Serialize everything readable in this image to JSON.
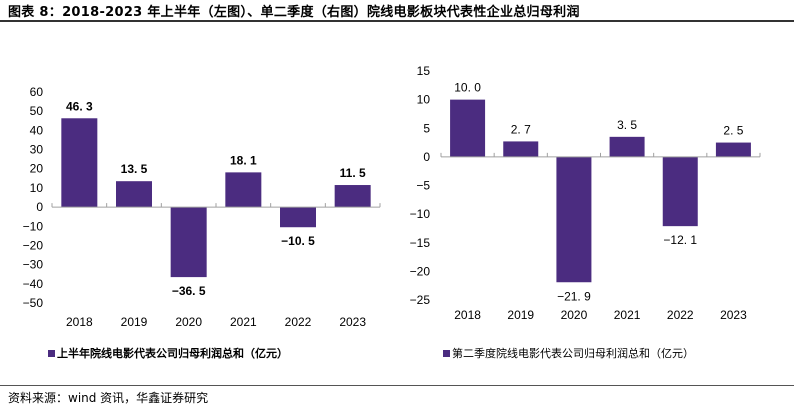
{
  "header": {
    "title": "图表 8：2018-2023 年上半年（左图）、单二季度（右图）院线电影板块代表性企业总归母利润"
  },
  "footer": {
    "source": "资料来源：wind 资讯，华鑫证券研究"
  },
  "colors": {
    "bar": "#4b2c80",
    "axis": "#a0a0a0"
  },
  "chart_data": [
    {
      "type": "bar",
      "title": "",
      "categories": [
        "2018",
        "2019",
        "2020",
        "2021",
        "2022",
        "2023"
      ],
      "values": [
        46.3,
        13.5,
        -36.5,
        18.1,
        -10.5,
        11.5
      ],
      "value_labels": [
        "46.3",
        "13.5",
        "-36.5",
        "18.1",
        "-10.5",
        "11.5"
      ],
      "series": [
        {
          "name": "上半年院线电影代表公司归母利润总和（亿元）",
          "values": [
            46.3,
            13.5,
            -36.5,
            18.1,
            -10.5,
            11.5
          ]
        }
      ],
      "xlabel": "",
      "ylabel": "",
      "ylim": [
        -50,
        60
      ],
      "yticks": [
        60,
        50,
        40,
        30,
        20,
        10,
        0,
        -10,
        -20,
        -30,
        -40,
        -50
      ],
      "grid": false,
      "legend": "bottom",
      "legend_label": "上半年院线电影代表公司归母利润总和（亿元）"
    },
    {
      "type": "bar",
      "title": "",
      "categories": [
        "2018",
        "2019",
        "2020",
        "2021",
        "2022",
        "2023"
      ],
      "values": [
        10.0,
        2.7,
        -21.9,
        3.5,
        -12.1,
        2.5
      ],
      "value_labels": [
        "10.0",
        "2.7",
        "-21.9",
        "3.5",
        "-12.1",
        "2.5"
      ],
      "series": [
        {
          "name": "第二季度院线电影代表公司归母利润总和（亿元）",
          "values": [
            10.0,
            2.7,
            -21.9,
            3.5,
            -12.1,
            2.5
          ]
        }
      ],
      "xlabel": "",
      "ylabel": "",
      "ylim": [
        -25,
        15
      ],
      "yticks": [
        15,
        10,
        5,
        0,
        -5,
        -10,
        -15,
        -20,
        -25
      ],
      "grid": false,
      "legend": "bottom",
      "legend_label": "第二季度院线电影代表公司归母利润总和（亿元）"
    }
  ]
}
